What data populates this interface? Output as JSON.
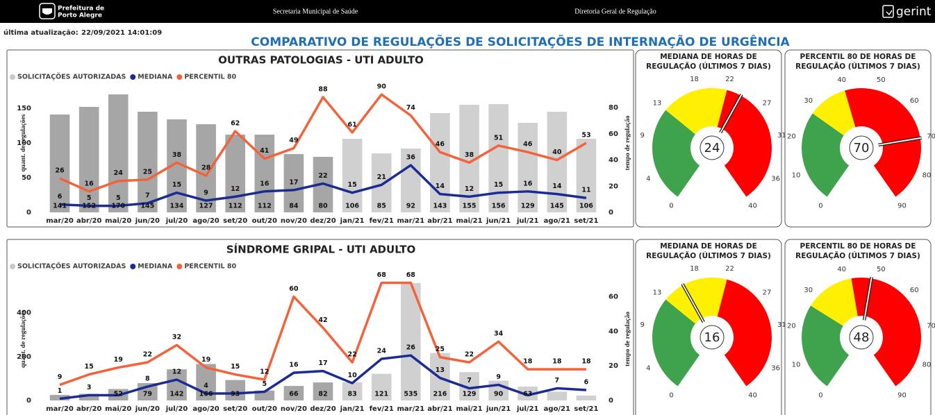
{
  "header": {
    "logo_line1": "Prefeitura de",
    "logo_line2": "Porto Alegre",
    "center_left": "Secretaria Municipal de Saúde",
    "center_right": "Diretoria Geral de Regulação",
    "brand": "gerint"
  },
  "update_label": "última atualização:",
  "update_value": "22/09/2021 14:01:09",
  "page_title": "COMPARATIVO DE REGULAÇÕES DE SOLICITAÇÕES DE INTERNAÇÃO DE URGÊNCIA",
  "chart_data": [
    {
      "type": "combo",
      "title": "OUTRAS PATOLOGIAS - UTI ADULTO",
      "ylabel": "quant. de regulações",
      "y2label": "tempo de regulação",
      "legend": "top-left",
      "categories": [
        "mar/20",
        "abr/20",
        "mai/20",
        "jun/20",
        "jul/20",
        "ago/20",
        "set/20",
        "out/20",
        "nov/20",
        "dez/20",
        "jan/21",
        "fev/21",
        "mar/21",
        "abr/21",
        "mai/21",
        "jun/21",
        "jul/21",
        "ago/21",
        "set/21"
      ],
      "ylim": [
        0,
        200
      ],
      "yticks": [
        0,
        50,
        100,
        150
      ],
      "y2lim": [
        0,
        106
      ],
      "y2ticks": [
        0,
        20,
        40,
        60,
        80
      ],
      "series": [
        {
          "name": "SOLICITAÇÕES AUTORIZADAS",
          "kind": "bar",
          "color": "#c8c8c8",
          "colors": [
            "#a6a6a6",
            "#a6a6a6",
            "#a6a6a6",
            "#a6a6a6",
            "#a6a6a6",
            "#a6a6a6",
            "#a6a6a6",
            "#a6a6a6",
            "#a6a6a6",
            "#a6a6a6",
            "#d0d0d0",
            "#d0d0d0",
            "#d0d0d0",
            "#d0d0d0",
            "#d0d0d0",
            "#d0d0d0",
            "#d0d0d0",
            "#d0d0d0",
            "#d0d0d0"
          ],
          "values": [
            141,
            152,
            170,
            145,
            134,
            127,
            112,
            112,
            84,
            80,
            106,
            85,
            92,
            143,
            155,
            156,
            129,
            145,
            106
          ]
        },
        {
          "name": "MEDIANA",
          "kind": "line",
          "axis": "y2",
          "color": "#1a2c94",
          "values": [
            6,
            5,
            5,
            7,
            15,
            9,
            12,
            16,
            17,
            22,
            15,
            21,
            36,
            14,
            12,
            15,
            16,
            14,
            11
          ]
        },
        {
          "name": "PERCENTIL 80",
          "kind": "line",
          "axis": "y2",
          "color": "#f4623a",
          "values": [
            26,
            16,
            24,
            25,
            38,
            28,
            62,
            41,
            49,
            88,
            61,
            90,
            74,
            46,
            38,
            51,
            46,
            40,
            53
          ]
        }
      ]
    },
    {
      "type": "gauge",
      "title": "MEDIANA DE HORAS DE REGULAÇÃO (ÚLTIMOS 7 DIAS)",
      "value": 24,
      "lim": [
        0,
        40
      ],
      "ticks": [
        0,
        4,
        9,
        13,
        18,
        22,
        27,
        31,
        36,
        40
      ],
      "bands": [
        {
          "to": 13,
          "color": "#3fa34d"
        },
        {
          "to": 22,
          "color": "#ffef00"
        },
        {
          "to": 40,
          "color": "#ff0000"
        }
      ]
    },
    {
      "type": "gauge",
      "title": "PERCENTIL 80 DE HORAS DE REGULAÇÃO (ÚLTIMOS 7 DIAS)",
      "value": 70,
      "lim": [
        0,
        90
      ],
      "ticks": [
        0,
        10,
        20,
        30,
        40,
        50,
        60,
        70,
        80,
        90
      ],
      "bands": [
        {
          "to": 28,
          "color": "#3fa34d"
        },
        {
          "to": 40,
          "color": "#ffef00"
        },
        {
          "to": 90,
          "color": "#ff0000"
        }
      ]
    },
    {
      "type": "combo",
      "title": "SÍNDROME GRIPAL - UTI ADULTO",
      "ylabel": "quant. de regulações",
      "y2label": "tempo de regulação",
      "legend": "top-left",
      "categories": [
        "mar/20",
        "abr/20",
        "mai/20",
        "jun/20",
        "jul/20",
        "ago/20",
        "set/20",
        "out/20",
        "nov/20",
        "dez/20",
        "jan/21",
        "fev/21",
        "mar/21",
        "abr/21",
        "mai/21",
        "jun/21",
        "jul/21",
        "ago/21",
        "set/21"
      ],
      "ylim": [
        0,
        560
      ],
      "yticks": [
        0,
        200,
        400
      ],
      "y2lim": [
        0,
        71
      ],
      "y2ticks": [
        0,
        20,
        40,
        60
      ],
      "series": [
        {
          "name": "SOLICITAÇÕES AUTORIZADAS",
          "kind": "bar",
          "color": "#c8c8c8",
          "colors": [
            "#a6a6a6",
            "#a6a6a6",
            "#a6a6a6",
            "#a6a6a6",
            "#a6a6a6",
            "#a6a6a6",
            "#a6a6a6",
            "#a6a6a6",
            "#a6a6a6",
            "#a6a6a6",
            "#d0d0d0",
            "#d0d0d0",
            "#d0d0d0",
            "#d0d0d0",
            "#d0d0d0",
            "#d0d0d0",
            "#d0d0d0",
            "#d0d0d0",
            "#d0d0d0"
          ],
          "values": [
            25,
            30,
            52,
            79,
            142,
            166,
            93,
            45,
            66,
            82,
            83,
            121,
            535,
            216,
            129,
            90,
            63,
            40,
            22
          ],
          "value_labels": [
            null,
            null,
            "52",
            "79",
            "142",
            "166",
            "93",
            null,
            "66",
            "82",
            "83",
            "121",
            "535",
            "216",
            "129",
            "90",
            "63",
            null,
            null
          ]
        },
        {
          "name": "MEDIANA",
          "kind": "line",
          "axis": "y2",
          "color": "#1a2c94",
          "values": [
            1,
            3,
            3,
            8,
            12,
            4,
            4,
            5,
            16,
            17,
            10,
            24,
            26,
            13,
            7,
            9,
            3,
            7,
            6
          ],
          "value_labels": [
            "1",
            "3",
            null,
            "8",
            "12",
            "4",
            null,
            "5",
            "16",
            "17",
            "10",
            "24",
            "26",
            "13",
            "7",
            "9",
            null,
            "7",
            "6"
          ]
        },
        {
          "name": "PERCENTIL 80",
          "kind": "line",
          "axis": "y2",
          "color": "#f4623a",
          "values": [
            9,
            15,
            19,
            22,
            32,
            19,
            15,
            12,
            60,
            42,
            22,
            68,
            68,
            25,
            22,
            34,
            18,
            18,
            18
          ]
        }
      ]
    },
    {
      "type": "gauge",
      "title": "MEDIANA DE HORAS DE REGULAÇÃO (ÚLTIMOS 7 DIAS)",
      "value": 16,
      "lim": [
        0,
        40
      ],
      "ticks": [
        0,
        4,
        9,
        13,
        18,
        22,
        27,
        31,
        36,
        40
      ],
      "bands": [
        {
          "to": 13,
          "color": "#3fa34d"
        },
        {
          "to": 22,
          "color": "#ffef00"
        },
        {
          "to": 40,
          "color": "#ff0000"
        }
      ]
    },
    {
      "type": "gauge",
      "title": "PERCENTIL 80 DE HORAS DE REGULAÇÃO (ÚLTIMOS 7 DIAS)",
      "value": 48,
      "lim": [
        0,
        90
      ],
      "ticks": [
        0,
        10,
        20,
        30,
        40,
        50,
        60,
        70,
        80,
        90
      ],
      "bands": [
        {
          "to": 27,
          "color": "#3fa34d"
        },
        {
          "to": 42,
          "color": "#ffef00"
        },
        {
          "to": 90,
          "color": "#ff0000"
        }
      ]
    }
  ]
}
